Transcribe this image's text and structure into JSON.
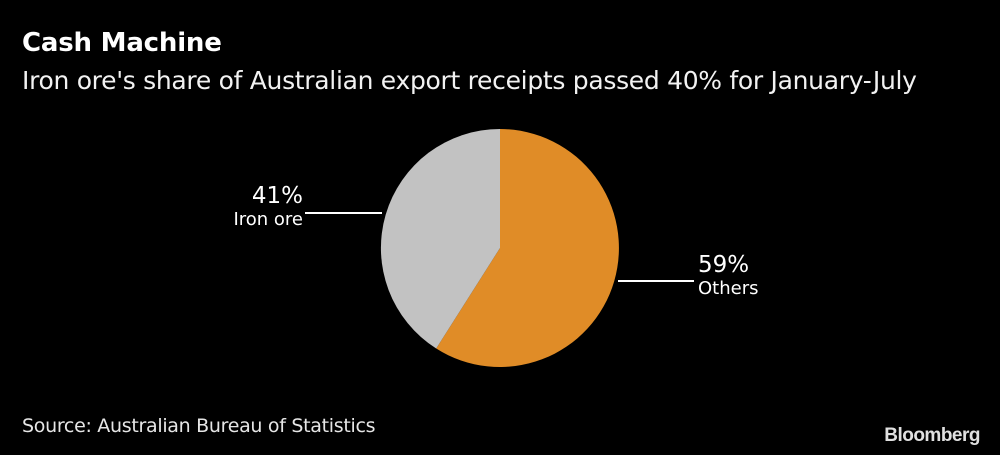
{
  "header": {
    "title": "Cash Machine",
    "subtitle": "Iron ore's share of Australian export receipts passed 40% for January-July"
  },
  "footer": {
    "source": "Source: Australian Bureau of Statistics",
    "brand": "Bloomberg"
  },
  "labels": {
    "iron_ore": {
      "pct": "41%",
      "name": "Iron ore"
    },
    "others": {
      "pct": "59%",
      "name": "Others"
    }
  },
  "colors": {
    "background": "#000000",
    "others": "#E08C27",
    "iron_ore": "#C2C2C2",
    "text": "#FFFFFF"
  },
  "chart_data": {
    "type": "pie",
    "title": "Cash Machine",
    "subtitle": "Iron ore's share of Australian export receipts passed 40% for January-July",
    "categories": [
      "Others",
      "Iron ore"
    ],
    "values": [
      59,
      41
    ],
    "unit": "%",
    "colors": [
      "#E08C27",
      "#C2C2C2"
    ],
    "start_angle": "12 o'clock, clockwise",
    "source": "Australian Bureau of Statistics",
    "legend": "none (direct labels)"
  }
}
